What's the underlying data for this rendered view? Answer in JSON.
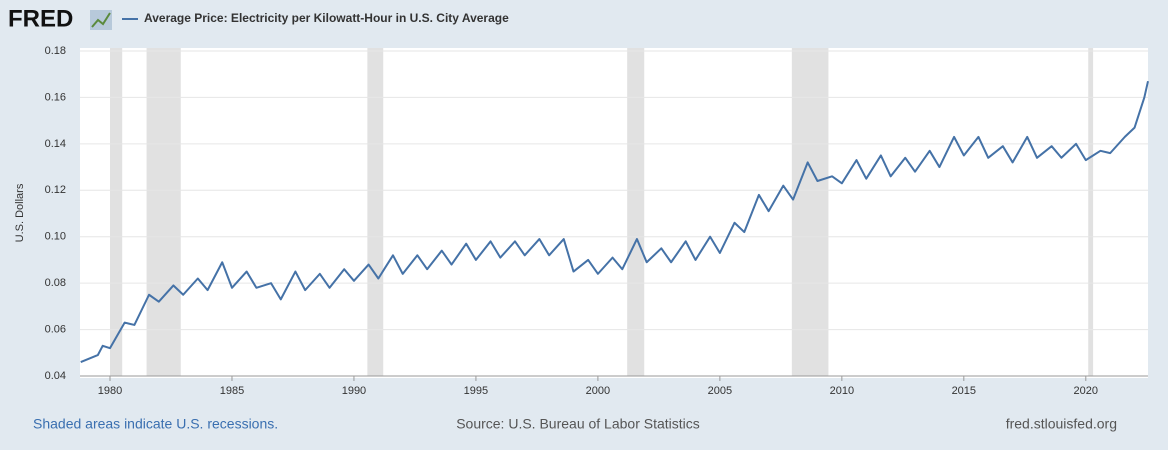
{
  "logo": "FRED",
  "footer": {
    "left": "Shaded areas indicate U.S. recessions.",
    "center": "Source: U.S. Bureau of Labor Statistics",
    "right": "fred.stlouisfed.org"
  },
  "chart_data": {
    "type": "line",
    "ylabel": "U.S. Dollars",
    "xlim": [
      1978.77,
      2022.55
    ],
    "xticks": [
      1980,
      1985,
      1990,
      1995,
      2000,
      2005,
      2010,
      2015,
      2020
    ],
    "ylim": [
      0.04,
      0.18
    ],
    "yticks": [
      {
        "value": 0.04,
        "label": "0.04"
      },
      {
        "value": 0.06,
        "label": "0.06"
      },
      {
        "value": 0.08,
        "label": "0.08"
      },
      {
        "value": 0.1,
        "label": "0.10"
      },
      {
        "value": 0.12,
        "label": "0.12"
      },
      {
        "value": 0.14,
        "label": "0.14"
      },
      {
        "value": 0.16,
        "label": "0.16"
      },
      {
        "value": 0.18,
        "label": "0.18"
      }
    ],
    "grid": true,
    "recessions": [
      [
        1980.0,
        1980.5
      ],
      [
        1981.5,
        1982.9
      ],
      [
        1990.55,
        1991.2
      ],
      [
        2001.2,
        2001.9
      ],
      [
        2007.95,
        2009.45
      ],
      [
        2020.1,
        2020.3
      ]
    ],
    "recession_color": "#e1e1e1",
    "x": [
      1978.8,
      1979.5,
      1979.7,
      1980.0,
      1980.6,
      1981.0,
      1981.6,
      1982.0,
      1982.6,
      1983.0,
      1983.6,
      1984.0,
      1984.6,
      1985.0,
      1985.6,
      1986.0,
      1986.6,
      1987.0,
      1987.6,
      1988.0,
      1988.6,
      1989.0,
      1989.6,
      1990.0,
      1990.6,
      1991.0,
      1991.6,
      1992.0,
      1992.6,
      1993.0,
      1993.6,
      1994.0,
      1994.6,
      1995.0,
      1995.6,
      1996.0,
      1996.6,
      1997.0,
      1997.6,
      1998.0,
      1998.6,
      1999.0,
      1999.6,
      2000.0,
      2000.6,
      2001.0,
      2001.6,
      2002.0,
      2002.6,
      2003.0,
      2003.6,
      2004.0,
      2004.6,
      2005.0,
      2005.6,
      2006.0,
      2006.6,
      2007.0,
      2007.6,
      2008.0,
      2008.6,
      2009.0,
      2009.6,
      2010.0,
      2010.6,
      2011.0,
      2011.6,
      2012.0,
      2012.6,
      2013.0,
      2013.6,
      2014.0,
      2014.6,
      2015.0,
      2015.6,
      2016.0,
      2016.6,
      2017.0,
      2017.6,
      2018.0,
      2018.6,
      2019.0,
      2019.6,
      2020.0,
      2020.6,
      2021.0,
      2021.6,
      2022.0,
      2022.4,
      2022.55
    ],
    "series": [
      {
        "name": "Average Price: Electricity per Kilowatt-Hour in U.S. City Average",
        "color": "#4572a7",
        "values": [
          0.046,
          0.049,
          0.053,
          0.052,
          0.063,
          0.062,
          0.075,
          0.072,
          0.079,
          0.075,
          0.082,
          0.077,
          0.089,
          0.078,
          0.085,
          0.078,
          0.08,
          0.073,
          0.085,
          0.077,
          0.084,
          0.078,
          0.086,
          0.081,
          0.088,
          0.082,
          0.092,
          0.084,
          0.092,
          0.086,
          0.094,
          0.088,
          0.097,
          0.09,
          0.098,
          0.091,
          0.098,
          0.092,
          0.099,
          0.092,
          0.099,
          0.085,
          0.09,
          0.084,
          0.091,
          0.086,
          0.099,
          0.089,
          0.095,
          0.089,
          0.098,
          0.09,
          0.1,
          0.093,
          0.106,
          0.102,
          0.118,
          0.111,
          0.122,
          0.116,
          0.132,
          0.124,
          0.126,
          0.123,
          0.133,
          0.125,
          0.135,
          0.126,
          0.134,
          0.128,
          0.137,
          0.13,
          0.143,
          0.135,
          0.143,
          0.134,
          0.139,
          0.132,
          0.143,
          0.134,
          0.139,
          0.134,
          0.14,
          0.133,
          0.137,
          0.136,
          0.143,
          0.147,
          0.16,
          0.167
        ]
      }
    ]
  }
}
